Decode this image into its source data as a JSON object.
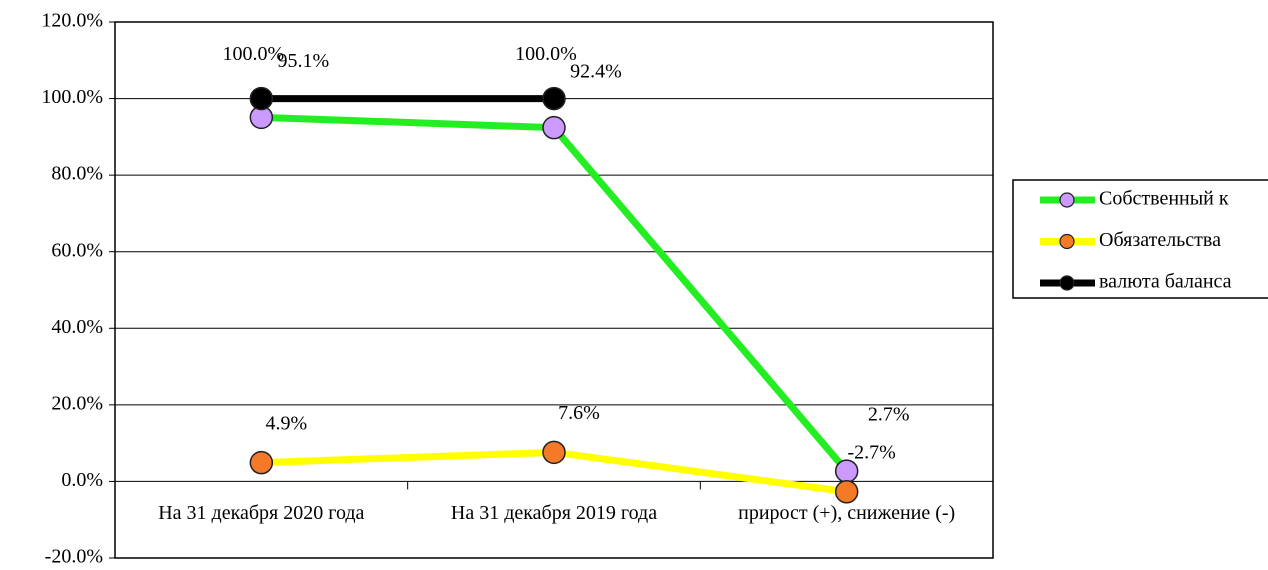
{
  "chart_data": {
    "type": "line",
    "categories": [
      "На 31 декабря 2020 года",
      "На 31 декабря 2019 года",
      "прирост (+), снижение (-)"
    ],
    "series": [
      {
        "name": "Собственный к",
        "color": "#22ee22",
        "marker_color": "#cc99ff",
        "values": [
          95.1,
          92.4,
          2.7
        ],
        "value_labels": [
          "95.1%",
          "92.4%",
          "2.7%"
        ]
      },
      {
        "name": "Обязательства",
        "color": "#ffff00",
        "marker_color": "#f57a28",
        "values": [
          4.9,
          7.6,
          -2.7
        ],
        "value_labels": [
          "4.9%",
          "7.6%",
          "-2.7%"
        ]
      },
      {
        "name": "валюта баланса",
        "color": "#000000",
        "marker_color": "#000000",
        "values": [
          100,
          100,
          null
        ],
        "value_labels": [
          "100.0%",
          "100.0%",
          null
        ]
      }
    ],
    "ylim": [
      -20,
      120
    ],
    "yticks": [
      {
        "value": -20,
        "label": "-20.0%"
      },
      {
        "value": 0,
        "label": "0.0%"
      },
      {
        "value": 20,
        "label": "20.0%"
      },
      {
        "value": 40,
        "label": "40.0%"
      },
      {
        "value": 60,
        "label": "60.0%"
      },
      {
        "value": 80,
        "label": "80.0%"
      },
      {
        "value": 100,
        "label": "100.0%"
      },
      {
        "value": 120,
        "label": "120.0%"
      }
    ],
    "grid": true,
    "legend": "right"
  }
}
